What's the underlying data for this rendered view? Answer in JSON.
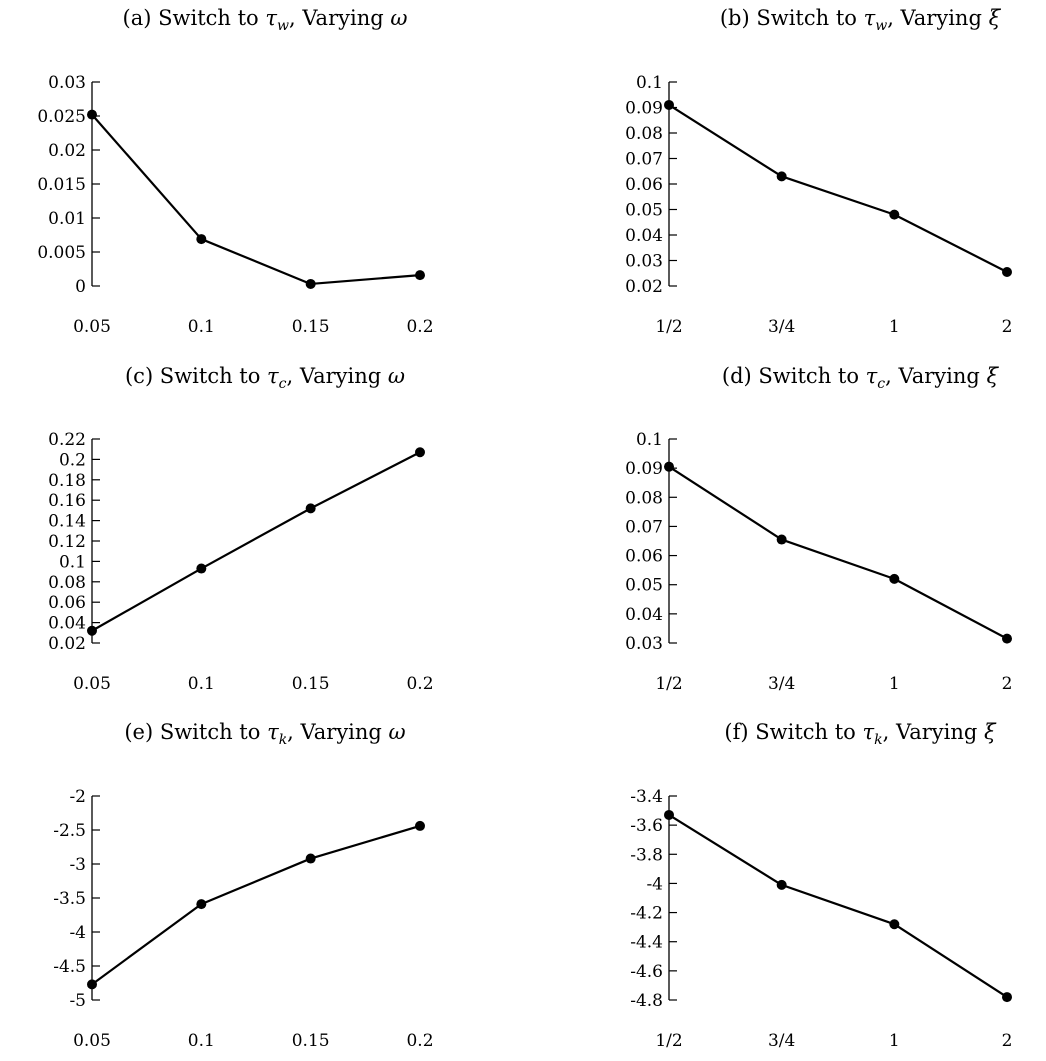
{
  "chart_data": [
    {
      "type": "line",
      "title_prefix": "(a) Switch to ",
      "title_sym": "τ",
      "title_sub": "w",
      "title_suffix": ", Varying ",
      "title_var": "ω",
      "categories": [
        "0.05",
        "0.1",
        "0.15",
        "0.2"
      ],
      "values": [
        0.0252,
        0.0069,
        0.0003,
        0.0016
      ],
      "ylim": [
        0,
        0.03
      ],
      "yticks": [
        0,
        0.005,
        0.01,
        0.015,
        0.02,
        0.025,
        0.03
      ],
      "yticklabels": [
        "0",
        "0.005",
        "0.01",
        "0.015",
        "0.02",
        "0.025",
        "0.03"
      ],
      "grid": false,
      "legend": false,
      "xlabel": "",
      "ylabel": ""
    },
    {
      "type": "line",
      "title_prefix": "(b) Switch to ",
      "title_sym": "τ",
      "title_sub": "w",
      "title_suffix": ", Varying ",
      "title_var": "ξ",
      "categories": [
        "1/2",
        "3/4",
        "1",
        "2"
      ],
      "values": [
        0.091,
        0.063,
        0.048,
        0.0255
      ],
      "ylim": [
        0.02,
        0.1
      ],
      "yticks": [
        0.02,
        0.03,
        0.04,
        0.05,
        0.06,
        0.07,
        0.08,
        0.09,
        0.1
      ],
      "yticklabels": [
        "0.02",
        "0.03",
        "0.04",
        "0.05",
        "0.06",
        "0.07",
        "0.08",
        "0.09",
        "0.1"
      ],
      "grid": false,
      "legend": false,
      "xlabel": "",
      "ylabel": ""
    },
    {
      "type": "line",
      "title_prefix": "(c) Switch to ",
      "title_sym": "τ",
      "title_sub": "c",
      "title_suffix": ", Varying ",
      "title_var": "ω",
      "categories": [
        "0.05",
        "0.1",
        "0.15",
        "0.2"
      ],
      "values": [
        0.032,
        0.093,
        0.152,
        0.207
      ],
      "ylim": [
        0.02,
        0.22
      ],
      "yticks": [
        0.02,
        0.04,
        0.06,
        0.08,
        0.1,
        0.12,
        0.14,
        0.16,
        0.18,
        0.2,
        0.22
      ],
      "yticklabels": [
        "0.02",
        "0.04",
        "0.06",
        "0.08",
        "0.1",
        "0.12",
        "0.14",
        "0.16",
        "0.18",
        "0.2",
        "0.22"
      ],
      "grid": false,
      "legend": false,
      "xlabel": "",
      "ylabel": ""
    },
    {
      "type": "line",
      "title_prefix": "(d) Switch to ",
      "title_sym": "τ",
      "title_sub": "c",
      "title_suffix": ", Varying ",
      "title_var": "ξ",
      "categories": [
        "1/2",
        "3/4",
        "1",
        "2"
      ],
      "values": [
        0.0905,
        0.0655,
        0.052,
        0.0315
      ],
      "ylim": [
        0.03,
        0.1
      ],
      "yticks": [
        0.03,
        0.04,
        0.05,
        0.06,
        0.07,
        0.08,
        0.09,
        0.1
      ],
      "yticklabels": [
        "0.03",
        "0.04",
        "0.05",
        "0.06",
        "0.07",
        "0.08",
        "0.09",
        "0.1"
      ],
      "grid": false,
      "legend": false,
      "xlabel": "",
      "ylabel": ""
    },
    {
      "type": "line",
      "title_prefix": "(e) Switch to ",
      "title_sym": "τ",
      "title_sub": "k",
      "title_suffix": ", Varying ",
      "title_var": "ω",
      "categories": [
        "0.05",
        "0.1",
        "0.15",
        "0.2"
      ],
      "values": [
        -4.77,
        -3.59,
        -2.92,
        -2.44
      ],
      "ylim": [
        -5,
        -2
      ],
      "yticks": [
        -5,
        -4.5,
        -4,
        -3.5,
        -3,
        -2.5,
        -2
      ],
      "yticklabels": [
        "-5",
        "-4.5",
        "-4",
        "-3.5",
        "-3",
        "-2.5",
        "-2"
      ],
      "grid": false,
      "legend": false,
      "xlabel": "",
      "ylabel": ""
    },
    {
      "type": "line",
      "title_prefix": "(f) Switch to ",
      "title_sym": "τ",
      "title_sub": "k",
      "title_suffix": ", Varying ",
      "title_var": "ξ",
      "categories": [
        "1/2",
        "3/4",
        "1",
        "2"
      ],
      "values": [
        -3.53,
        -4.01,
        -4.28,
        -4.78
      ],
      "ylim": [
        -4.8,
        -3.4
      ],
      "yticks": [
        -4.8,
        -4.6,
        -4.4,
        -4.2,
        -4,
        -3.8,
        -3.6,
        -3.4
      ],
      "yticklabels": [
        "-4.8",
        "-4.6",
        "-4.4",
        "-4.2",
        "-4",
        "-3.8",
        "-3.6",
        "-3.4"
      ],
      "grid": false,
      "legend": false,
      "xlabel": "",
      "ylabel": ""
    }
  ]
}
